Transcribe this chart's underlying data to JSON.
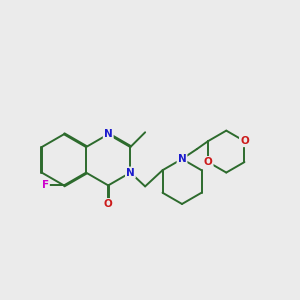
{
  "bg_color": "#ebebeb",
  "bond_color": "#2d6b2d",
  "N_color": "#1a1acc",
  "O_color": "#cc1a1a",
  "F_color": "#cc00cc",
  "lw": 1.4,
  "dbo": 0.022,
  "figsize": [
    3.0,
    3.0
  ],
  "dpi": 100,
  "xlim": [
    -0.3,
    5.8
  ],
  "ylim": [
    -0.4,
    3.8
  ]
}
